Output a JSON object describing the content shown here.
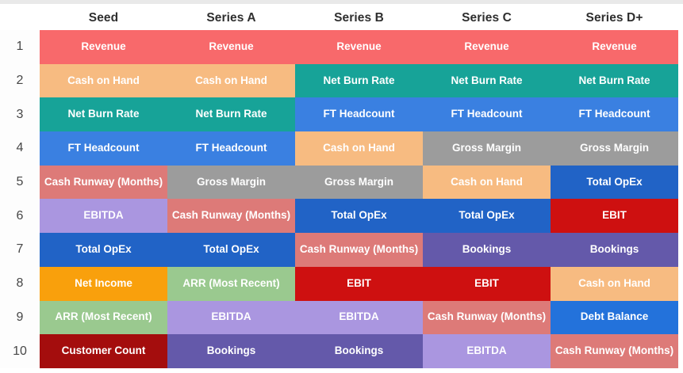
{
  "chart_data": {
    "type": "table",
    "title": "",
    "columns": [
      "Seed",
      "Series A",
      "Series B",
      "Series C",
      "Series D+"
    ],
    "row_labels": [
      "1",
      "2",
      "3",
      "4",
      "5",
      "6",
      "7",
      "8",
      "9",
      "10"
    ],
    "rows": [
      [
        "Revenue",
        "Revenue",
        "Revenue",
        "Revenue",
        "Revenue"
      ],
      [
        "Cash on Hand",
        "Cash on Hand",
        "Net Burn Rate",
        "Net Burn Rate",
        "Net Burn Rate"
      ],
      [
        "Net Burn Rate",
        "Net Burn Rate",
        "FT Headcount",
        "FT Headcount",
        "FT Headcount"
      ],
      [
        "FT Headcount",
        "FT Headcount",
        "Cash on Hand",
        "Gross Margin",
        "Gross Margin"
      ],
      [
        "Cash Runway (Months)",
        "Gross Margin",
        "Gross Margin",
        "Cash on Hand",
        "Total OpEx"
      ],
      [
        "EBITDA",
        "Cash Runway (Months)",
        "Total OpEx",
        "Total OpEx",
        "EBIT"
      ],
      [
        "Total OpEx",
        "Total OpEx",
        "Cash Runway (Months)",
        "Bookings",
        "Bookings"
      ],
      [
        "Net Income",
        "ARR (Most Recent)",
        "EBIT",
        "EBIT",
        "Cash on Hand"
      ],
      [
        "ARR (Most Recent)",
        "EBITDA",
        "EBITDA",
        "Cash Runway (Months)",
        "Debt Balance"
      ],
      [
        "Customer Count",
        "Bookings",
        "Bookings",
        "EBITDA",
        "Cash Runway (Months)"
      ]
    ],
    "metric_colors": {
      "Revenue": "#F8696B",
      "Cash on Hand": "#F7BB81",
      "Net Burn Rate": "#17A398",
      "FT Headcount": "#3A80E1",
      "Gross Margin": "#9C9C9C",
      "Cash Runway (Months)": "#DD7A78",
      "EBITDA": "#AA96E0",
      "Total OpEx": "#2163C6",
      "EBIT": "#CE1010",
      "Bookings": "#6459AA",
      "Net Income": "#F9A00C",
      "ARR (Most Recent)": "#9AC98F",
      "Customer Count": "#A40D0D",
      "Debt Balance": "#2372DB"
    },
    "cell_text_color": "#FFFFFF",
    "header_text_color": "#2F2F2F",
    "row_number_color": "#474747",
    "legend_position": "none",
    "grid": false
  }
}
